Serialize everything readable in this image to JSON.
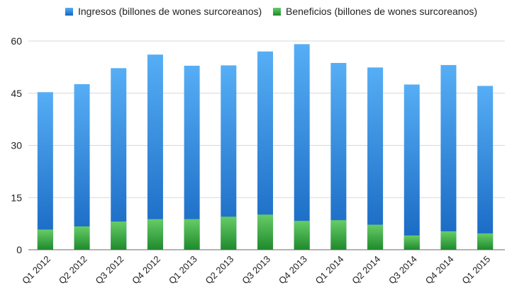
{
  "chart_data": {
    "type": "bar",
    "title": "",
    "xlabel": "",
    "ylabel": "",
    "ylim": [
      0,
      60
    ],
    "yticks": [
      0,
      15,
      30,
      45,
      60
    ],
    "grid": true,
    "legend_position": "top",
    "categories": [
      "Q1 2012",
      "Q2 2012",
      "Q3 2012",
      "Q4 2012",
      "Q1 2013",
      "Q2 2013",
      "Q3 2013",
      "Q4 2013",
      "Q1 2014",
      "Q2 2014",
      "Q3 2014",
      "Q4 2014",
      "Q1 2015"
    ],
    "series": [
      {
        "name": "Ingresos (billones de wones surcoreanos)",
        "color": "#3a8fe0",
        "values": [
          45.3,
          47.6,
          52.2,
          56.1,
          52.9,
          53.0,
          57.0,
          59.1,
          53.7,
          52.4,
          47.5,
          53.1,
          47.1
        ]
      },
      {
        "name": "Beneficios (billones de wones surcoreanos)",
        "color": "#3fae47",
        "values": [
          5.8,
          6.7,
          8.1,
          8.8,
          8.8,
          9.5,
          10.1,
          8.3,
          8.5,
          7.2,
          4.1,
          5.3,
          4.7
        ]
      }
    ]
  }
}
